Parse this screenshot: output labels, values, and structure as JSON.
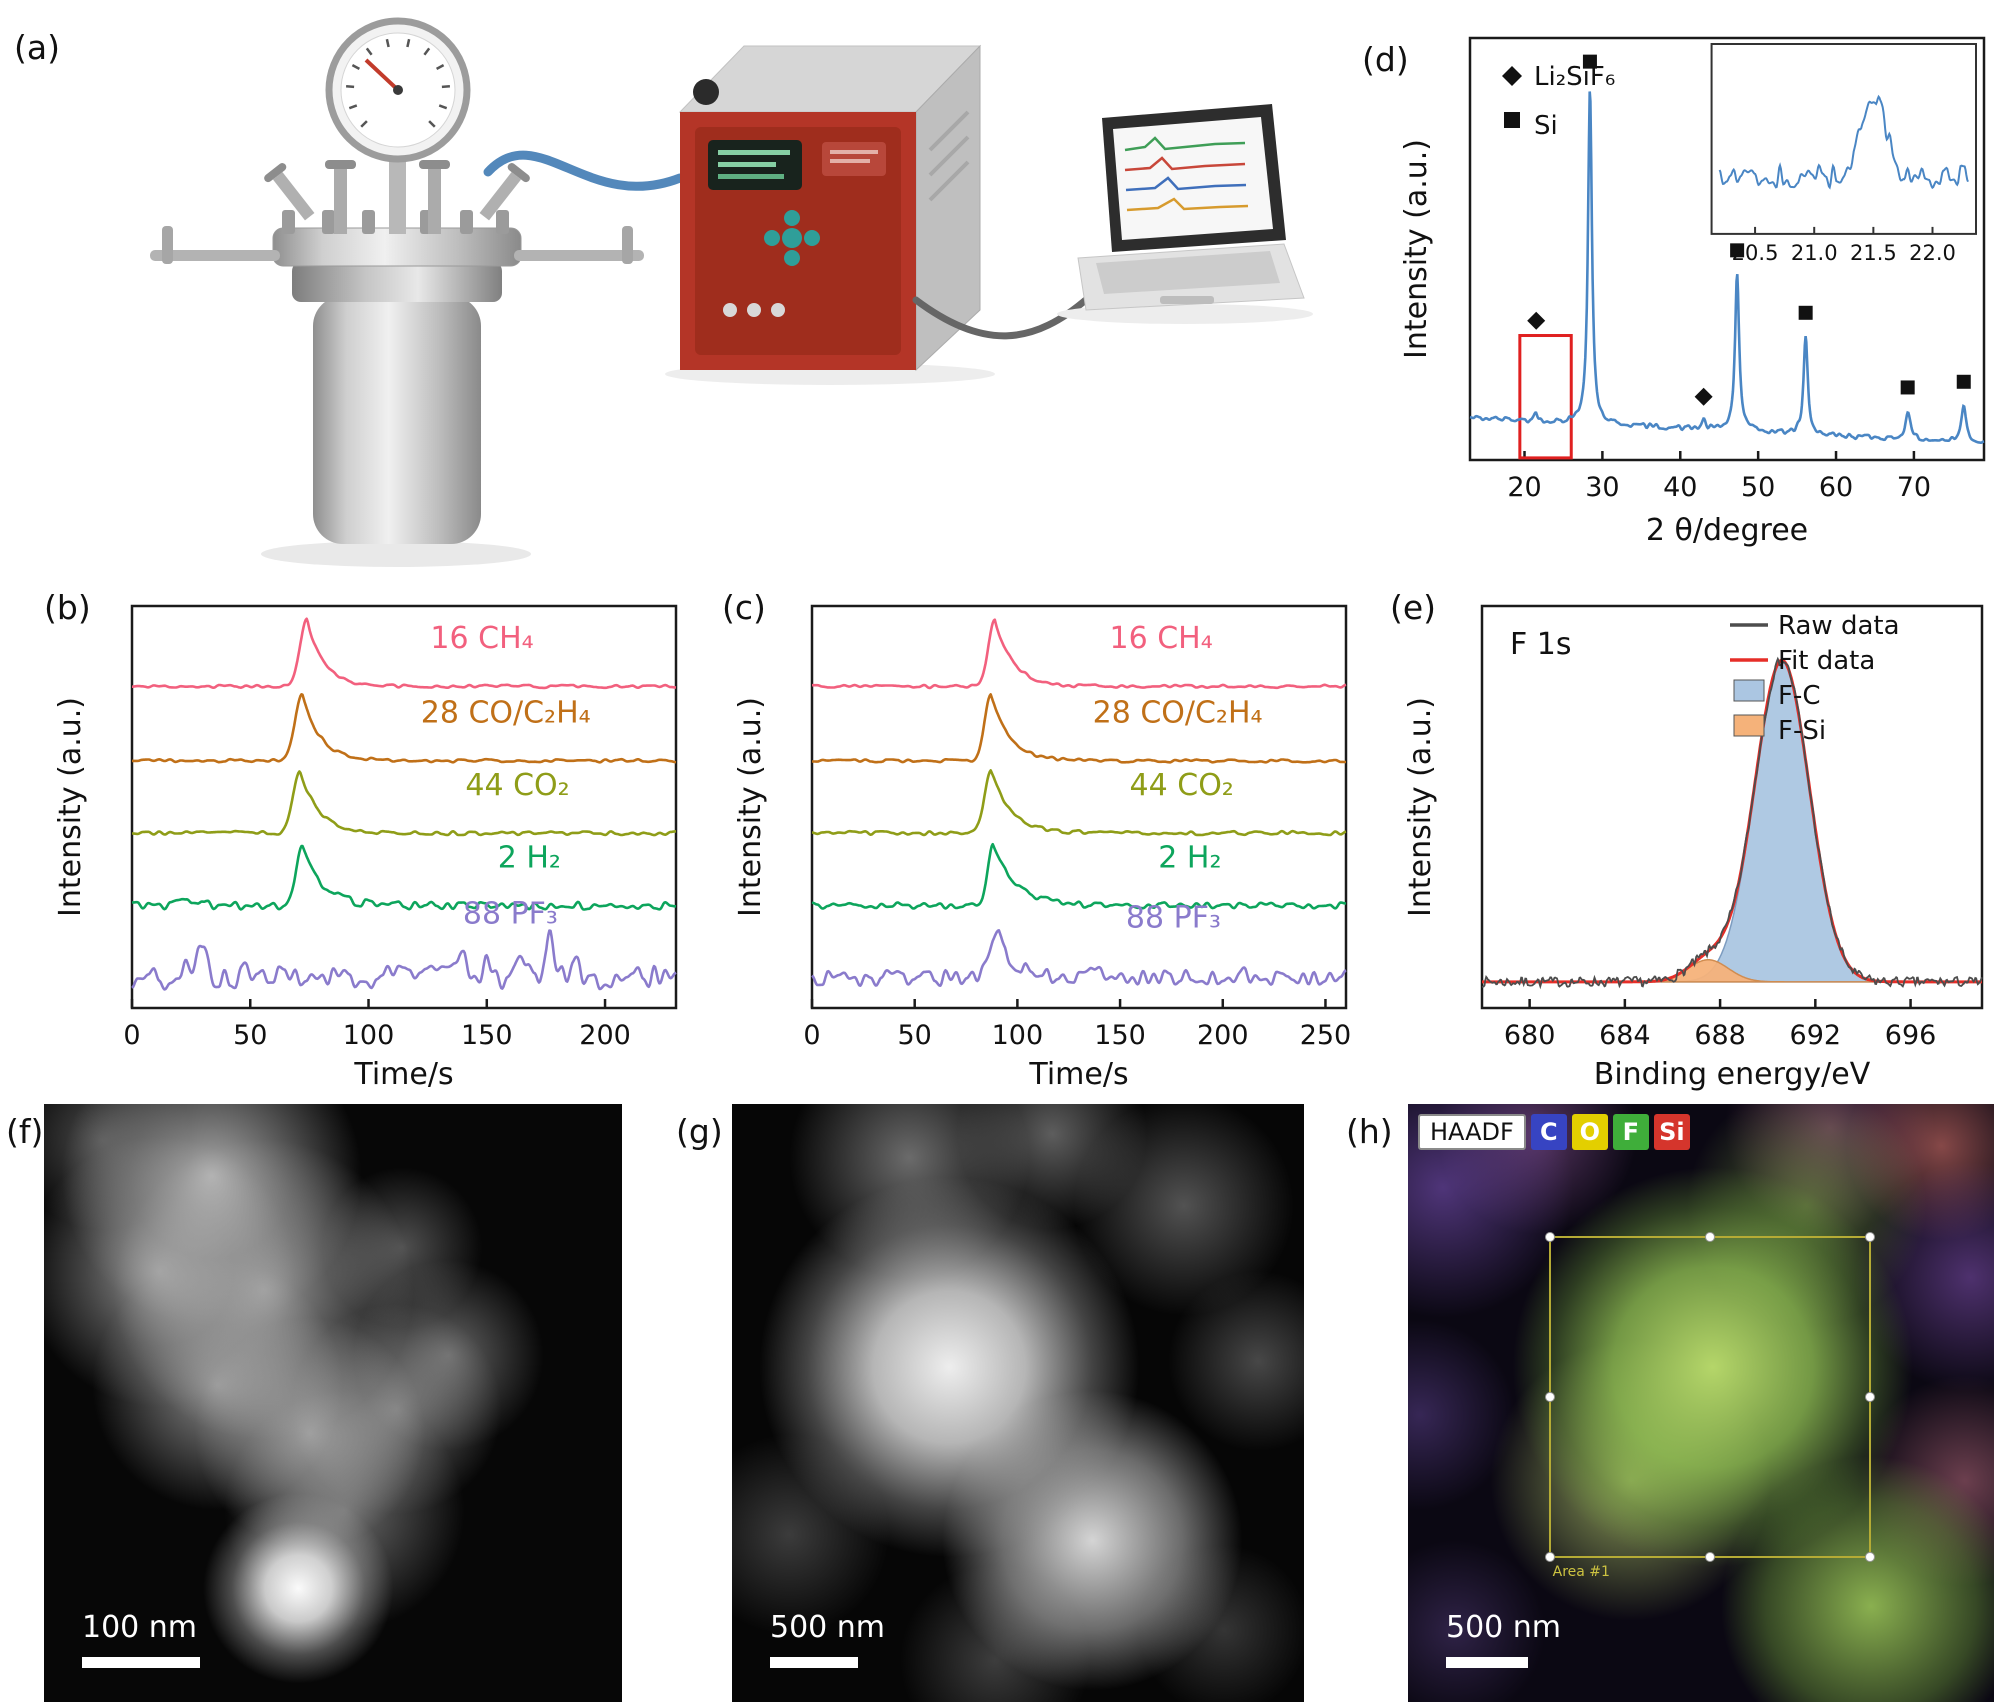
{
  "panel_labels": {
    "a": "(a)",
    "b": "(b)",
    "c": "(c)",
    "d": "(d)",
    "e": "(e)",
    "f": "(f)",
    "g": "(g)",
    "h": "(h)"
  },
  "panel_f": {
    "scale_bar": "100 nm"
  },
  "panel_g": {
    "scale_bar": "500 nm"
  },
  "panel_h": {
    "scale_bar": "500 nm",
    "area_label": "Area #1",
    "badges": [
      {
        "label": "HAADF",
        "bg": "#ffffff",
        "fg": "#111111"
      },
      {
        "label": "C",
        "bg": "#3744c2",
        "fg": "#ffffff"
      },
      {
        "label": "O",
        "bg": "#e3cf00",
        "fg": "#ffffff"
      },
      {
        "label": "F",
        "bg": "#3fae3a",
        "fg": "#ffffff"
      },
      {
        "label": "Si",
        "bg": "#d5352c",
        "fg": "#ffffff"
      }
    ]
  },
  "chart_data": [
    {
      "panel": "b",
      "type": "line",
      "subtype": "ms-traces",
      "xlabel": "Time/s",
      "ylabel": "Intensity (a.u.)",
      "xlim": [
        0,
        230
      ],
      "xticks": [
        0,
        50,
        100,
        150,
        200
      ],
      "peak_time_s": 75,
      "series": [
        {
          "name": "16 CH₄",
          "color": "#f2607e",
          "offset": 0.8,
          "amp": 0.165,
          "noise": 0.004,
          "label_x": 148,
          "peaks": [
            {
              "c": 74,
              "w": 3,
              "d": 7,
              "h": 1
            }
          ]
        },
        {
          "name": "28 CO/C₂H₄",
          "color": "#c07018",
          "offset": 0.615,
          "amp": 0.165,
          "noise": 0.004,
          "label_x": 158,
          "peaks": [
            {
              "c": 72,
              "w": 3,
              "d": 7.5,
              "h": 1
            }
          ]
        },
        {
          "name": "44 CO₂",
          "color": "#8f9d18",
          "offset": 0.435,
          "amp": 0.155,
          "noise": 0.005,
          "label_x": 163,
          "peaks": [
            {
              "c": 71,
              "w": 3,
              "d": 8,
              "h": 1
            }
          ]
        },
        {
          "name": "2 H₂",
          "color": "#0da55c",
          "offset": 0.255,
          "amp": 0.15,
          "noise": 0.01,
          "label_x": 168,
          "peaks": [
            {
              "c": 72,
              "w": 2.6,
              "d": 8,
              "h": 1
            },
            {
              "c": 25,
              "w": 4,
              "h": 0.1,
              "sym": true
            }
          ]
        },
        {
          "name": "88 PF₃",
          "color": "#8a7bcc",
          "offset": 0.075,
          "amp": 0.12,
          "noise": 0.03,
          "label_x": 160,
          "label_dy": 0.135,
          "peaks": [
            {
              "c": 22,
              "w": 1.8,
              "h": 0.35,
              "sym": true
            },
            {
              "c": 30,
              "w": 2.0,
              "h": 0.8,
              "sym": true
            },
            {
              "c": 47,
              "w": 1.6,
              "h": 0.18,
              "sym": true
            },
            {
              "c": 140,
              "w": 2.0,
              "h": 0.45,
              "sym": true
            },
            {
              "c": 151,
              "w": 1.8,
              "h": 0.4,
              "sym": true
            },
            {
              "c": 164,
              "w": 1.8,
              "h": 0.42,
              "sym": true
            },
            {
              "c": 176,
              "w": 1.8,
              "h": 0.85,
              "sym": true
            },
            {
              "c": 187,
              "w": 1.6,
              "h": 0.3,
              "sym": true
            }
          ]
        }
      ]
    },
    {
      "panel": "c",
      "type": "line",
      "subtype": "ms-traces",
      "xlabel": "Time/s",
      "ylabel": "Intensity (a.u.)",
      "xlim": [
        0,
        260
      ],
      "xticks": [
        0,
        50,
        100,
        150,
        200,
        250
      ],
      "peak_time_s": 90,
      "series": [
        {
          "name": "16 CH₄",
          "color": "#f2607e",
          "offset": 0.8,
          "amp": 0.165,
          "noise": 0.004,
          "label_x": 170,
          "peaks": [
            {
              "c": 89,
              "w": 3,
              "d": 9,
              "h": 1
            }
          ]
        },
        {
          "name": "28 CO/C₂H₄",
          "color": "#c07018",
          "offset": 0.615,
          "amp": 0.165,
          "noise": 0.004,
          "label_x": 178,
          "peaks": [
            {
              "c": 87,
              "w": 3,
              "d": 9,
              "h": 1
            }
          ]
        },
        {
          "name": "44 CO₂",
          "color": "#8f9d18",
          "offset": 0.435,
          "amp": 0.155,
          "noise": 0.005,
          "label_x": 180,
          "peaks": [
            {
              "c": 87,
              "w": 3,
              "d": 10,
              "h": 1
            }
          ]
        },
        {
          "name": "2 H₂",
          "color": "#0da55c",
          "offset": 0.255,
          "amp": 0.15,
          "noise": 0.008,
          "label_x": 184,
          "peaks": [
            {
              "c": 88,
              "w": 2.6,
              "d": 11,
              "h": 1
            }
          ]
        },
        {
          "name": "88 PF₃",
          "color": "#8a7bcc",
          "offset": 0.075,
          "amp": 0.13,
          "noise": 0.02,
          "label_x": 176,
          "label_dy": 0.125,
          "peaks": [
            {
              "c": 91,
              "w": 4.5,
              "d": 8,
              "h": 0.8
            },
            {
              "c": 138,
              "w": 2,
              "h": 0.15,
              "sym": true
            },
            {
              "c": 150,
              "w": 2,
              "h": 0.12,
              "sym": true
            },
            {
              "c": 210,
              "w": 2,
              "h": 0.12,
              "sym": true
            }
          ]
        }
      ]
    },
    {
      "panel": "d",
      "type": "line",
      "subtype": "xrd",
      "xlabel": "2 θ/degree",
      "ylabel": "Intensity (a.u.)",
      "xlim": [
        13,
        79
      ],
      "xticks": [
        20,
        30,
        40,
        50,
        60,
        70
      ],
      "color": "#4a86c4",
      "baseline_start": 0.1,
      "baseline_end": 0.04,
      "peaks": [
        {
          "c": 21.5,
          "h": 0.02,
          "w": 0.25,
          "phase": "Li₂SiF₆",
          "marker_v": 0.33
        },
        {
          "c": 28.4,
          "h": 0.8,
          "w": 0.3,
          "phase": "Si"
        },
        {
          "c": 43.0,
          "h": 0.02,
          "w": 0.3,
          "phase": "Li₂SiF₆",
          "marker_v": 0.15
        },
        {
          "c": 47.3,
          "h": 0.37,
          "w": 0.32,
          "phase": "Si"
        },
        {
          "c": 56.1,
          "h": 0.23,
          "w": 0.32,
          "phase": "Si"
        },
        {
          "c": 69.2,
          "h": 0.065,
          "w": 0.38,
          "phase": "Si"
        },
        {
          "c": 76.4,
          "h": 0.085,
          "w": 0.38,
          "phase": "Si"
        }
      ],
      "legend": [
        {
          "marker": "diamond",
          "label": "Li₂SiF₆"
        },
        {
          "marker": "square",
          "label": "Si"
        }
      ],
      "highlight_box": {
        "x0": 19.4,
        "x1": 26.0,
        "v0": 0.005,
        "v1": 0.295,
        "color": "#e02020"
      },
      "inset": {
        "xlim": [
          20.2,
          22.3
        ],
        "xticks": [
          20.5,
          21.0,
          21.5,
          22.0
        ],
        "peak": {
          "c": 21.5,
          "h": 0.52,
          "w": 0.1
        },
        "baseline": 0.28,
        "noise": 0.07
      }
    },
    {
      "panel": "e",
      "type": "area",
      "subtype": "xps",
      "annotation": "F 1s",
      "xlabel": "Binding energy/eV",
      "ylabel": "Intensity (a.u.)",
      "xlim": [
        678,
        699
      ],
      "xticks": [
        680,
        684,
        688,
        692,
        696
      ],
      "baseline": 0.065,
      "raw": {
        "label": "Raw data",
        "color": "#4d4d4d",
        "noise": 0.013
      },
      "fit": {
        "label": "Fit data",
        "color": "#e62e28"
      },
      "components": [
        {
          "name": "F-C",
          "fill": "#abc6e2",
          "stroke": "#7d9cc0",
          "c": 690.6,
          "w": 1.15,
          "h": 0.8
        },
        {
          "name": "F-Si",
          "fill": "#f5b27a",
          "stroke": "#d08c50",
          "c": 687.5,
          "w": 0.85,
          "h": 0.055
        }
      ]
    }
  ]
}
